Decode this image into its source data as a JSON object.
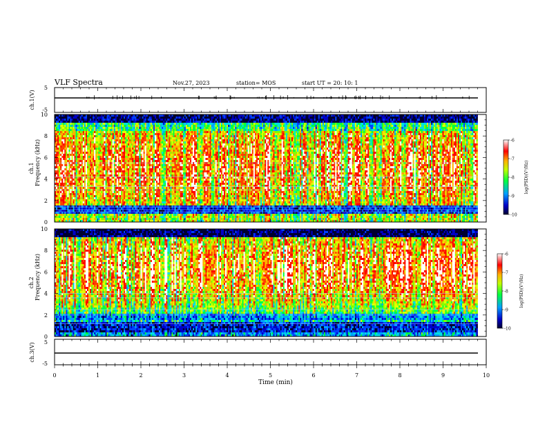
{
  "header": {
    "title": "VLF Spectra",
    "date": "Nov.27, 2023",
    "station": "station= MOS",
    "start_ut": "start  UT =   20: 10: 1"
  },
  "chart_data": [
    {
      "type": "line",
      "id": "ch1_waveform",
      "ylabel": "ch.1(V)",
      "ylim": [
        -5,
        5
      ],
      "yticks": [
        "5",
        "-5"
      ],
      "xlim": [
        0,
        10
      ],
      "series": [
        {
          "values_constant": 0
        }
      ],
      "data_extent_min": 9.8
    },
    {
      "type": "heatmap",
      "id": "ch1_spectrogram",
      "ylabel": "ch.1\nFrequency (kHz)",
      "ylabel_line1": "ch.1",
      "ylabel_line2": "Frequency  (kHz)",
      "ylim": [
        0,
        10
      ],
      "yticks": [
        "0",
        "2",
        "4",
        "6",
        "8",
        "10"
      ],
      "xlim": [
        0,
        10
      ],
      "data_extent_min": 9.8,
      "colorbar": {
        "label": "log(PSD)(V²/Hz)",
        "range": [
          -10,
          -6
        ],
        "ticks": [
          "-6",
          "-7",
          "-8",
          "-9",
          "-10"
        ]
      }
    },
    {
      "type": "heatmap",
      "id": "ch2_spectrogram",
      "ylabel_line1": "ch.2",
      "ylabel_line2": "Frequency  (kHz)",
      "ylim": [
        0,
        10
      ],
      "yticks": [
        "0",
        "2",
        "4",
        "6",
        "8",
        "10"
      ],
      "xlim": [
        0,
        10
      ],
      "data_extent_min": 9.8,
      "colorbar": {
        "label": "log(PSD)(V²/Hz)",
        "range": [
          -10,
          -6
        ],
        "ticks": [
          "-6",
          "-7",
          "-8",
          "-9",
          "-10"
        ]
      }
    },
    {
      "type": "line",
      "id": "ch3_waveform",
      "ylabel": "ch.3(V)",
      "ylim": [
        -5,
        5
      ],
      "yticks": [
        "5",
        "-5"
      ],
      "xlim": [
        0,
        10
      ],
      "series": [
        {
          "values_constant": 0
        }
      ],
      "data_extent_min": 9.8
    }
  ],
  "xaxis": {
    "label": "Time  (min)",
    "ticks": [
      "0",
      "1",
      "2",
      "3",
      "4",
      "5",
      "6",
      "7",
      "8",
      "9",
      "10"
    ]
  },
  "colors": {
    "colormap": [
      "#000080",
      "#0000ff",
      "#00bfff",
      "#00ff80",
      "#80ff00",
      "#ffff00",
      "#ff8000",
      "#ff0000",
      "#ffffff"
    ]
  }
}
